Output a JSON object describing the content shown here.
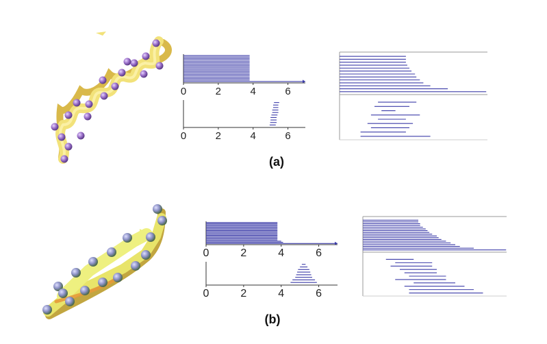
{
  "panels": [
    {
      "label": "(a)",
      "molecule": "alpha-helix",
      "persistence_top": {
        "ticks": [
          "0",
          "2",
          "4",
          "6"
        ],
        "bars": [
          [
            0,
            3.8
          ],
          [
            0,
            3.8
          ],
          [
            0,
            3.8
          ],
          [
            0,
            3.8
          ],
          [
            0,
            3.8
          ],
          [
            0,
            3.8
          ],
          [
            0,
            3.8
          ],
          [
            0,
            3.8
          ],
          [
            0,
            3.8
          ],
          [
            0,
            3.8
          ],
          [
            0,
            3.8
          ],
          [
            0,
            3.8
          ],
          [
            0,
            3.8
          ],
          [
            0,
            3.8
          ],
          [
            0,
            3.8
          ],
          [
            0,
            3.8
          ],
          [
            0,
            3.8
          ],
          [
            0,
            3.8
          ],
          [
            0,
            7.0
          ]
        ]
      },
      "persistence_bottom": {
        "ticks": [
          "0",
          "2",
          "4",
          "6"
        ],
        "bars": [
          [
            5.2,
            5.5
          ],
          [
            5.15,
            5.45
          ],
          [
            5.15,
            5.45
          ],
          [
            5.1,
            5.45
          ],
          [
            5.1,
            5.45
          ],
          [
            5.05,
            5.4
          ],
          [
            5.0,
            5.35
          ],
          [
            5.0,
            5.35
          ],
          [
            4.98,
            5.35
          ],
          [
            4.95,
            5.3
          ]
        ]
      },
      "barcode_top": [
        0.95,
        0.95,
        0.95,
        0.97,
        1.0,
        1.03,
        1.08,
        1.1,
        1.15,
        1.2,
        1.3,
        1.55,
        2.1
      ],
      "barcode_bottom": [
        [
          0.55,
          1.1
        ],
        [
          0.5,
          1.0
        ],
        [
          0.6,
          0.8
        ],
        [
          0.45,
          1.15
        ],
        [
          0.55,
          0.95
        ],
        [
          0.4,
          1.05
        ],
        [
          0.45,
          1.0
        ],
        [
          0.3,
          0.95
        ],
        [
          0.3,
          1.3
        ]
      ]
    },
    {
      "label": "(b)",
      "molecule": "beta-hairpin",
      "persistence_top": {
        "ticks": [
          "0",
          "2",
          "4",
          "6"
        ],
        "bars": [
          [
            0,
            3.8
          ],
          [
            0,
            3.8
          ],
          [
            0,
            3.8
          ],
          [
            0,
            3.8
          ],
          [
            0,
            3.8
          ],
          [
            0,
            3.8
          ],
          [
            0,
            3.8
          ],
          [
            0,
            3.8
          ],
          [
            0,
            3.8
          ],
          [
            0,
            3.8
          ],
          [
            0,
            3.8
          ],
          [
            0,
            3.8
          ],
          [
            0,
            3.8
          ],
          [
            0,
            3.8
          ],
          [
            0,
            3.8
          ],
          [
            0,
            3.8
          ],
          [
            0,
            4.0
          ],
          [
            0,
            4.1
          ],
          [
            0,
            7.0
          ]
        ]
      },
      "persistence_bottom": {
        "ticks": [
          "0",
          "2",
          "4",
          "6"
        ],
        "bars": [
          [
            5.1,
            5.3
          ],
          [
            5.0,
            5.4
          ],
          [
            4.9,
            5.5
          ],
          [
            4.85,
            5.55
          ],
          [
            4.8,
            5.6
          ],
          [
            4.75,
            5.65
          ],
          [
            4.6,
            5.8
          ],
          [
            4.5,
            5.9
          ]
        ]
      },
      "barcode_top": [
        0.6,
        0.6,
        0.62,
        0.62,
        0.65,
        0.68,
        0.7,
        0.72,
        0.75,
        0.8,
        0.82,
        0.85,
        0.9,
        0.95,
        1.0,
        1.05,
        1.2,
        1.55
      ],
      "barcode_bottom": [
        [
          0.25,
          0.55
        ],
        [
          0.35,
          0.75
        ],
        [
          0.3,
          0.75
        ],
        [
          0.4,
          0.8
        ],
        [
          0.45,
          0.8
        ],
        [
          0.5,
          0.9
        ],
        [
          0.35,
          0.9
        ],
        [
          0.55,
          1.0
        ],
        [
          0.45,
          1.1
        ],
        [
          0.5,
          1.2
        ],
        [
          0.5,
          1.3
        ]
      ]
    }
  ],
  "colors": {
    "bar": "#3b3ba8",
    "axis": "#333333",
    "ribbon_helix": "#f2e27a",
    "ribbon_sheet": "#e8e46a",
    "atom_helix": "#9a6fc9",
    "atom_sheet": "#8a8fc4"
  }
}
